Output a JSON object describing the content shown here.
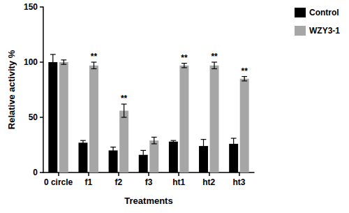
{
  "chart_data": {
    "type": "bar",
    "x_label": "Treatments",
    "y_label": "Relative activity %",
    "categories": [
      "0 circle",
      "f1",
      "f2",
      "f3",
      "ht1",
      "ht2",
      "ht3"
    ],
    "series": [
      {
        "name": "Control",
        "color": "#000000",
        "values": [
          100,
          27,
          20,
          16,
          28,
          24,
          26
        ],
        "errors": [
          7,
          2,
          3,
          4,
          1,
          6,
          5
        ],
        "annotations": [
          null,
          null,
          null,
          null,
          null,
          null,
          null
        ]
      },
      {
        "name": "WZY3-1",
        "color": "#a6a6a6",
        "values": [
          100,
          97,
          56,
          29,
          97,
          97,
          85
        ],
        "errors": [
          2,
          3,
          6,
          3,
          2,
          3,
          2
        ],
        "annotations": [
          null,
          "**",
          "**",
          null,
          "**",
          "**",
          "**"
        ]
      }
    ],
    "ylim": [
      0,
      150
    ],
    "yticks": [
      0,
      50,
      100,
      150
    ],
    "grid": false,
    "legend": "upper right"
  }
}
